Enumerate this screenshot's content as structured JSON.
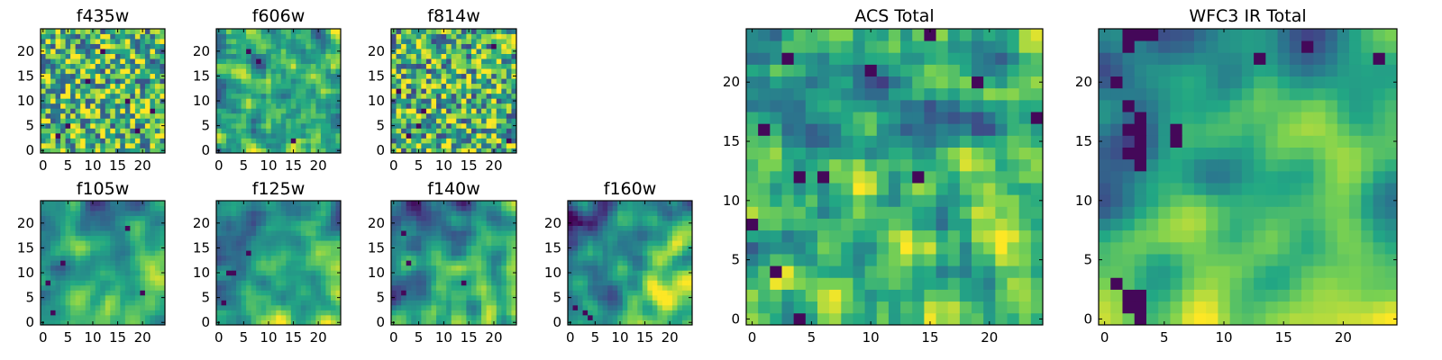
{
  "figure": {
    "colormap": "viridis",
    "colormap_stops": [
      "#440154",
      "#414487",
      "#2a788e",
      "#22a884",
      "#7ad151",
      "#fde725"
    ],
    "background": "#ffffff"
  },
  "chart_data": [
    {
      "type": "heatmap",
      "title": "f435w",
      "grid_size": 25,
      "x_ticks": [
        "0",
        "5",
        "10",
        "15",
        "20"
      ],
      "y_ticks": [
        "0",
        "5",
        "10",
        "15",
        "20"
      ],
      "xlim": [
        -0.5,
        24.5
      ],
      "ylim": [
        -0.5,
        24.5
      ],
      "value_range": [
        0,
        1
      ],
      "smoothness": 0.0,
      "base_level": 0.68,
      "gradient": [
        0.0,
        0.0
      ],
      "seed": 11,
      "low_pixels": [
        [
          5,
          5
        ],
        [
          17,
          10
        ],
        [
          22,
          8
        ],
        [
          3,
          3
        ],
        [
          12,
          20
        ],
        [
          19,
          4
        ],
        [
          9,
          14
        ]
      ]
    },
    {
      "type": "heatmap",
      "title": "f606w",
      "grid_size": 25,
      "x_ticks": [
        "0",
        "5",
        "10",
        "15",
        "20"
      ],
      "y_ticks": [
        "0",
        "5",
        "10",
        "15",
        "20"
      ],
      "xlim": [
        -0.5,
        24.5
      ],
      "ylim": [
        -0.5,
        24.5
      ],
      "value_range": [
        0,
        1
      ],
      "smoothness": 0.2,
      "base_level": 0.66,
      "gradient": [
        0.0,
        0.0
      ],
      "seed": 23,
      "low_pixels": [
        [
          15,
          2
        ],
        [
          8,
          18
        ],
        [
          6,
          20
        ]
      ]
    },
    {
      "type": "heatmap",
      "title": "f814w",
      "grid_size": 25,
      "x_ticks": [
        "0",
        "5",
        "10",
        "15",
        "20"
      ],
      "y_ticks": [
        "0",
        "5",
        "10",
        "15",
        "20"
      ],
      "xlim": [
        -0.5,
        24.5
      ],
      "ylim": [
        -0.5,
        24.5
      ],
      "value_range": [
        0,
        1
      ],
      "smoothness": 0.1,
      "base_level": 0.64,
      "gradient": [
        0.0,
        0.0
      ],
      "seed": 37,
      "low_pixels": [
        [
          5,
          5
        ],
        [
          3,
          3
        ],
        [
          6,
          8
        ],
        [
          20,
          21
        ],
        [
          1,
          12
        ],
        [
          23,
          2
        ]
      ]
    },
    {
      "type": "heatmap",
      "title": "f105w",
      "grid_size": 25,
      "x_ticks": [
        "0",
        "5",
        "10",
        "15",
        "20"
      ],
      "y_ticks": [
        "0",
        "5",
        "10",
        "15",
        "20"
      ],
      "xlim": [
        -0.5,
        24.5
      ],
      "ylim": [
        -0.5,
        24.5
      ],
      "value_range": [
        0,
        1
      ],
      "smoothness": 0.6,
      "base_level": 0.55,
      "gradient": [
        0.1,
        -0.12
      ],
      "seed": 41,
      "low_pixels": [
        [
          2,
          2
        ],
        [
          1,
          8
        ],
        [
          20,
          6
        ],
        [
          17,
          19
        ],
        [
          4,
          12
        ]
      ]
    },
    {
      "type": "heatmap",
      "title": "f125w",
      "grid_size": 25,
      "x_ticks": [
        "0",
        "5",
        "10",
        "15",
        "20"
      ],
      "y_ticks": [
        "0",
        "5",
        "10",
        "15",
        "20"
      ],
      "xlim": [
        -0.5,
        24.5
      ],
      "ylim": [
        -0.5,
        24.5
      ],
      "value_range": [
        0,
        1
      ],
      "smoothness": 0.6,
      "base_level": 0.55,
      "gradient": [
        0.12,
        -0.12
      ],
      "seed": 53,
      "low_pixels": [
        [
          2,
          10
        ],
        [
          3,
          10
        ],
        [
          1,
          4
        ],
        [
          6,
          14
        ]
      ]
    },
    {
      "type": "heatmap",
      "title": "f140w",
      "grid_size": 25,
      "x_ticks": [
        "0",
        "5",
        "10",
        "15",
        "20"
      ],
      "y_ticks": [
        "0",
        "5",
        "10",
        "15",
        "20"
      ],
      "xlim": [
        -0.5,
        24.5
      ],
      "ylim": [
        -0.5,
        24.5
      ],
      "value_range": [
        0,
        1
      ],
      "smoothness": 0.6,
      "base_level": 0.55,
      "gradient": [
        0.14,
        -0.14
      ],
      "seed": 67,
      "low_pixels": [
        [
          2,
          18
        ],
        [
          3,
          12
        ],
        [
          2,
          6
        ],
        [
          14,
          8
        ]
      ]
    },
    {
      "type": "heatmap",
      "title": "f160w",
      "grid_size": 25,
      "x_ticks": [
        "0",
        "5",
        "10",
        "15",
        "20"
      ],
      "y_ticks": [
        "0",
        "5",
        "10",
        "15",
        "20"
      ],
      "xlim": [
        -0.5,
        24.5
      ],
      "ylim": [
        -0.5,
        24.5
      ],
      "value_range": [
        0,
        1
      ],
      "smoothness": 0.6,
      "base_level": 0.55,
      "gradient": [
        0.16,
        -0.16
      ],
      "seed": 79,
      "low_pixels": [
        [
          3,
          2
        ],
        [
          4,
          1
        ],
        [
          1,
          3
        ],
        [
          2,
          20
        ]
      ]
    },
    {
      "type": "heatmap",
      "title": "ACS Total",
      "grid_size": 25,
      "x_ticks": [
        "0",
        "5",
        "10",
        "15",
        "20"
      ],
      "y_ticks": [
        "0",
        "5",
        "10",
        "15",
        "20"
      ],
      "xlim": [
        -0.5,
        24.5
      ],
      "ylim": [
        -0.5,
        24.5
      ],
      "value_range": [
        0,
        1
      ],
      "smoothness": 0.35,
      "base_level": 0.62,
      "gradient": [
        0.06,
        -0.06
      ],
      "seed": 97,
      "low_pixels": [
        [
          4,
          0
        ],
        [
          2,
          4
        ],
        [
          1,
          16
        ],
        [
          4,
          12
        ],
        [
          6,
          12
        ],
        [
          14,
          12
        ],
        [
          10,
          21
        ],
        [
          19,
          20
        ],
        [
          3,
          22
        ],
        [
          15,
          24
        ],
        [
          24,
          17
        ],
        [
          0,
          8
        ]
      ]
    },
    {
      "type": "heatmap",
      "title": "WFC3 IR Total",
      "grid_size": 25,
      "x_ticks": [
        "0",
        "5",
        "10",
        "15",
        "20"
      ],
      "y_ticks": [
        "0",
        "5",
        "10",
        "15",
        "20"
      ],
      "xlim": [
        -0.5,
        24.5
      ],
      "ylim": [
        -0.5,
        24.5
      ],
      "value_range": [
        0,
        1
      ],
      "smoothness": 0.75,
      "base_level": 0.55,
      "gradient": [
        0.16,
        -0.18
      ],
      "seed": 113,
      "low_pixels": [
        [
          2,
          18
        ],
        [
          3,
          17
        ],
        [
          3,
          16
        ],
        [
          2,
          16
        ],
        [
          3,
          15
        ],
        [
          3,
          14
        ],
        [
          2,
          14
        ],
        [
          3,
          13
        ],
        [
          6,
          16
        ],
        [
          6,
          15
        ],
        [
          1,
          20
        ],
        [
          2,
          24
        ],
        [
          3,
          24
        ],
        [
          4,
          24
        ],
        [
          2,
          23
        ],
        [
          13,
          22
        ],
        [
          17,
          23
        ],
        [
          23,
          22
        ],
        [
          1,
          3
        ],
        [
          2,
          2
        ],
        [
          3,
          2
        ],
        [
          2,
          1
        ],
        [
          3,
          1
        ],
        [
          3,
          0
        ]
      ]
    }
  ]
}
